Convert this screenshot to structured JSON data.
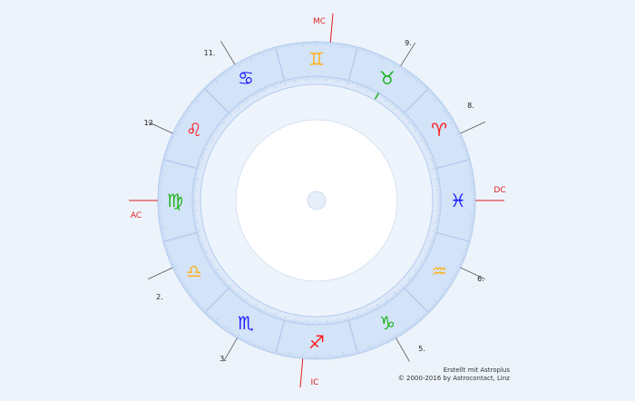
{
  "axes": [
    {
      "label": "MC",
      "color": "#e02020"
    },
    {
      "label": "AC",
      "color": "#e02020"
    },
    {
      "label": "DC",
      "color": "#e02020"
    },
    {
      "label": "IC",
      "color": "#e02020"
    }
  ],
  "houses": [
    "2.",
    "3.",
    "5.",
    "6.",
    "8.",
    "9.",
    "11.",
    "12."
  ],
  "signs": [
    {
      "name": "aries",
      "glyph": "♈",
      "color": "#ff1a1a"
    },
    {
      "name": "taurus",
      "glyph": "♉",
      "color": "#1ab21a"
    },
    {
      "name": "gemini",
      "glyph": "♊",
      "color": "#ffb020"
    },
    {
      "name": "cancer",
      "glyph": "♋",
      "color": "#1a1aff"
    },
    {
      "name": "leo",
      "glyph": "♌",
      "color": "#ff1a1a"
    },
    {
      "name": "virgo",
      "glyph": "♍",
      "color": "#1ab21a"
    },
    {
      "name": "libra",
      "glyph": "♎",
      "color": "#ffb020"
    },
    {
      "name": "scorpio",
      "glyph": "♏",
      "color": "#1a1aff"
    },
    {
      "name": "sagittarius",
      "glyph": "♐",
      "color": "#ff1a1a"
    },
    {
      "name": "capricorn",
      "glyph": "♑",
      "color": "#1ab21a"
    },
    {
      "name": "aquarius",
      "glyph": "♒",
      "color": "#ffb020"
    },
    {
      "name": "pisces",
      "glyph": "♓",
      "color": "#1a1aff"
    }
  ],
  "credit": {
    "line1": "Erstellt mit Astroplus",
    "line2": "© 2000-2016 by Astrocontact, Linz"
  }
}
